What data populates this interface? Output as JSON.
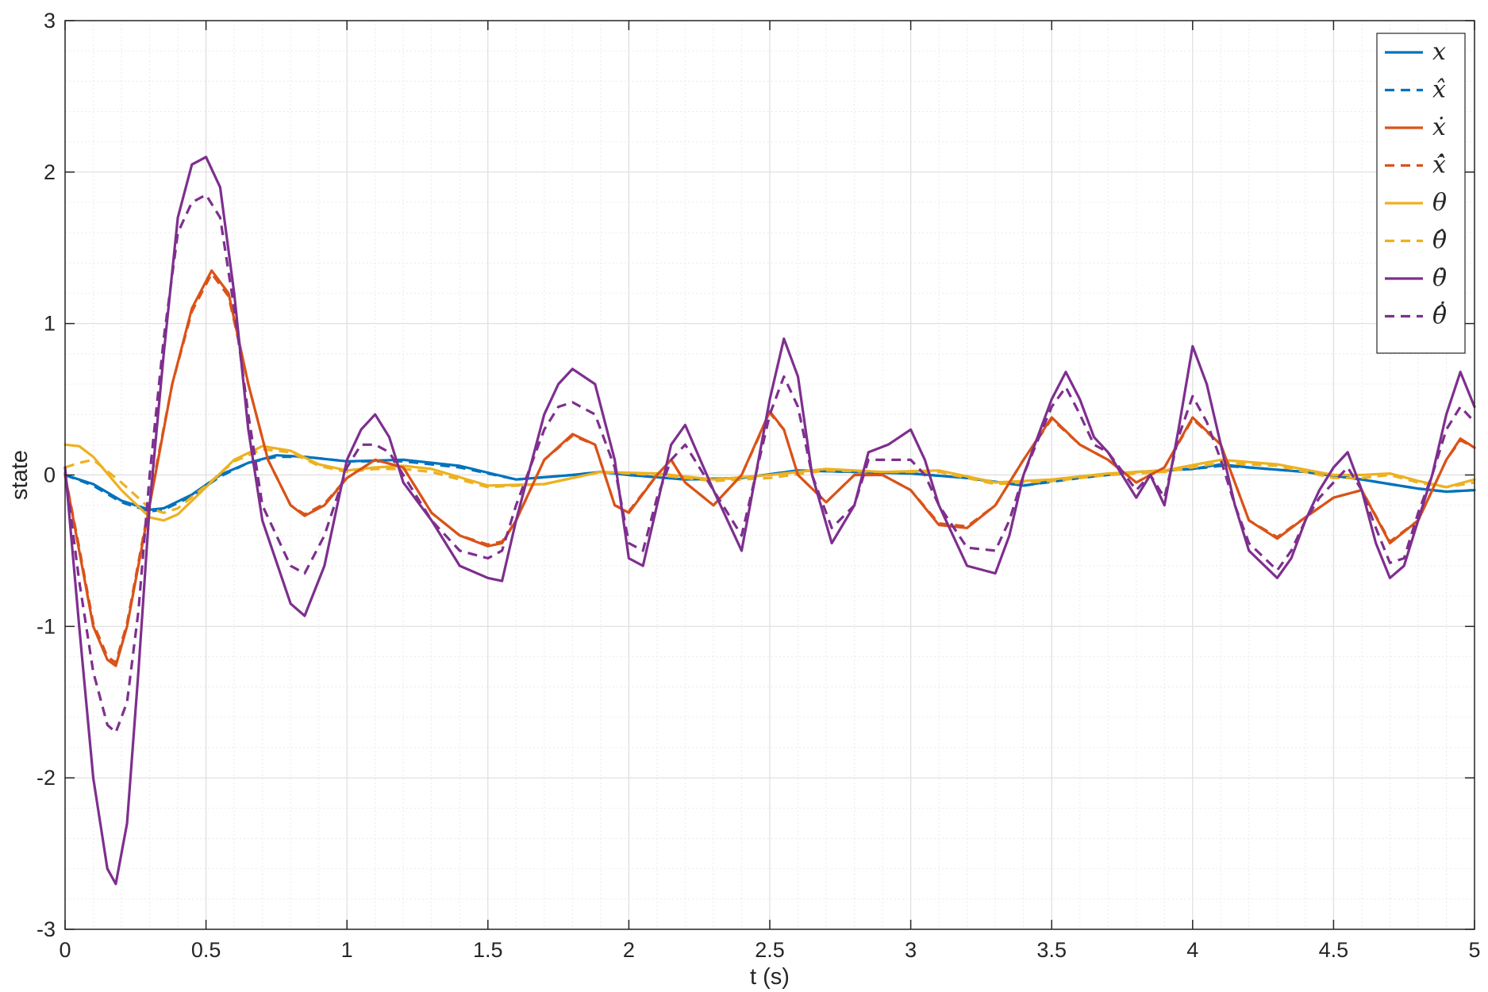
{
  "chart_data": {
    "type": "line",
    "title": "",
    "xlabel": "t (s)",
    "ylabel": "state",
    "xlim": [
      0,
      5
    ],
    "ylim": [
      -3,
      3
    ],
    "xticks": [
      0,
      0.5,
      1,
      1.5,
      2,
      2.5,
      3,
      3.5,
      4,
      4.5,
      5
    ],
    "xtick_labels": [
      "0",
      "0.5",
      "1",
      "1.5",
      "2",
      "2.5",
      "3",
      "3.5",
      "4",
      "4.5",
      "5"
    ],
    "yticks": [
      -3,
      -2,
      -1,
      0,
      1,
      2,
      3
    ],
    "ytick_labels": [
      "-3",
      "-2",
      "-1",
      "0",
      "1",
      "2",
      "3"
    ],
    "grid": true,
    "minor_grid": true,
    "legend_position": "top-right",
    "series": [
      {
        "name": "x",
        "color": "#0072BD",
        "dashed": false,
        "x": [
          0,
          0.1,
          0.2,
          0.3,
          0.35,
          0.45,
          0.55,
          0.65,
          0.75,
          0.85,
          1.0,
          1.2,
          1.4,
          1.6,
          1.8,
          1.9,
          2.0,
          2.2,
          2.4,
          2.6,
          2.8,
          3.0,
          3.2,
          3.4,
          3.6,
          3.8,
          4.0,
          4.1,
          4.2,
          4.4,
          4.6,
          4.7,
          4.8,
          4.9,
          5.0
        ],
        "y": [
          0,
          -0.06,
          -0.17,
          -0.23,
          -0.22,
          -0.13,
          0,
          0.08,
          0.13,
          0.12,
          0.09,
          0.1,
          0.06,
          -0.03,
          0,
          0.02,
          0,
          -0.03,
          -0.02,
          0.03,
          0.02,
          0.01,
          -0.02,
          -0.07,
          -0.01,
          0.02,
          0.04,
          0.07,
          0.05,
          0.02,
          -0.03,
          -0.06,
          -0.09,
          -0.11,
          -0.1
        ]
      },
      {
        "name": "x̂",
        "color": "#0072BD",
        "dashed": true,
        "x": [
          0,
          0.1,
          0.2,
          0.3,
          0.35,
          0.45,
          0.55,
          0.65,
          0.75,
          0.85,
          1.0,
          1.2,
          1.4,
          1.6,
          1.8,
          1.9,
          2.0,
          2.2,
          2.4,
          2.6,
          2.8,
          3.0,
          3.2,
          3.4,
          3.6,
          3.8,
          4.0,
          4.1,
          4.2,
          4.4,
          4.6,
          4.7,
          4.8,
          4.9,
          5.0
        ],
        "y": [
          0,
          -0.07,
          -0.18,
          -0.24,
          -0.23,
          -0.14,
          -0.01,
          0.08,
          0.12,
          0.12,
          0.09,
          0.09,
          0.05,
          -0.03,
          0,
          0.02,
          0,
          -0.03,
          -0.02,
          0.03,
          0.02,
          0.01,
          -0.02,
          -0.07,
          -0.02,
          0.02,
          0.04,
          0.06,
          0.05,
          0.02,
          -0.03,
          -0.06,
          -0.09,
          -0.11,
          -0.1
        ]
      },
      {
        "name": "ẋ",
        "color": "#D95319",
        "dashed": false,
        "x": [
          0,
          0.05,
          0.1,
          0.15,
          0.18,
          0.22,
          0.27,
          0.32,
          0.38,
          0.45,
          0.52,
          0.58,
          0.65,
          0.72,
          0.8,
          0.85,
          0.92,
          1.0,
          1.1,
          1.2,
          1.3,
          1.4,
          1.5,
          1.55,
          1.6,
          1.7,
          1.8,
          1.88,
          1.95,
          2.0,
          2.1,
          2.15,
          2.2,
          2.3,
          2.4,
          2.5,
          2.55,
          2.6,
          2.7,
          2.8,
          2.9,
          3.0,
          3.1,
          3.2,
          3.3,
          3.4,
          3.5,
          3.6,
          3.7,
          3.8,
          3.9,
          4.0,
          4.1,
          4.2,
          4.3,
          4.4,
          4.5,
          4.6,
          4.7,
          4.8,
          4.9,
          4.95,
          5.0
        ],
        "y": [
          0,
          -0.5,
          -1.0,
          -1.22,
          -1.26,
          -1.0,
          -0.5,
          0.0,
          0.6,
          1.1,
          1.35,
          1.2,
          0.6,
          0.1,
          -0.2,
          -0.27,
          -0.2,
          -0.02,
          0.1,
          0.05,
          -0.25,
          -0.4,
          -0.47,
          -0.45,
          -0.3,
          0.1,
          0.27,
          0.2,
          -0.2,
          -0.25,
          0.0,
          0.1,
          -0.05,
          -0.2,
          0.0,
          0.42,
          0.3,
          0.0,
          -0.18,
          0.0,
          0.0,
          -0.1,
          -0.33,
          -0.35,
          -0.2,
          0.1,
          0.38,
          0.2,
          0.1,
          -0.05,
          0.05,
          0.38,
          0.2,
          -0.3,
          -0.42,
          -0.28,
          -0.15,
          -0.1,
          -0.45,
          -0.3,
          0.1,
          0.24,
          0.18
        ]
      },
      {
        "name": "x̂̇",
        "color": "#D95319",
        "dashed": true,
        "x": [
          0,
          0.05,
          0.1,
          0.15,
          0.18,
          0.22,
          0.27,
          0.32,
          0.38,
          0.45,
          0.52,
          0.58,
          0.65,
          0.72,
          0.8,
          0.85,
          0.92,
          1.0,
          1.1,
          1.2,
          1.3,
          1.4,
          1.5,
          1.55,
          1.6,
          1.7,
          1.8,
          1.88,
          1.95,
          2.0,
          2.1,
          2.15,
          2.2,
          2.3,
          2.4,
          2.5,
          2.55,
          2.6,
          2.7,
          2.8,
          2.9,
          3.0,
          3.1,
          3.2,
          3.3,
          3.4,
          3.5,
          3.6,
          3.7,
          3.8,
          3.9,
          4.0,
          4.1,
          4.2,
          4.3,
          4.4,
          4.5,
          4.6,
          4.7,
          4.8,
          4.9,
          4.95,
          5.0
        ],
        "y": [
          0,
          -0.48,
          -0.98,
          -1.2,
          -1.24,
          -0.98,
          -0.48,
          0.02,
          0.6,
          1.08,
          1.33,
          1.18,
          0.6,
          0.1,
          -0.2,
          -0.26,
          -0.19,
          -0.02,
          0.1,
          0.05,
          -0.25,
          -0.4,
          -0.46,
          -0.44,
          -0.3,
          0.1,
          0.26,
          0.2,
          -0.2,
          -0.24,
          0.0,
          0.1,
          -0.05,
          -0.2,
          0.0,
          0.41,
          0.3,
          0.0,
          -0.18,
          0.0,
          0.0,
          -0.1,
          -0.32,
          -0.34,
          -0.2,
          0.1,
          0.37,
          0.2,
          0.1,
          -0.05,
          0.05,
          0.37,
          0.2,
          -0.3,
          -0.41,
          -0.28,
          -0.15,
          -0.1,
          -0.44,
          -0.3,
          0.1,
          0.23,
          0.18
        ]
      },
      {
        "name": "θ",
        "color": "#EDB120",
        "dashed": false,
        "x": [
          0,
          0.05,
          0.1,
          0.2,
          0.3,
          0.35,
          0.4,
          0.5,
          0.6,
          0.7,
          0.8,
          0.9,
          1.0,
          1.1,
          1.2,
          1.3,
          1.5,
          1.7,
          1.9,
          2.1,
          2.3,
          2.5,
          2.7,
          2.9,
          3.1,
          3.3,
          3.5,
          3.7,
          3.9,
          4.1,
          4.3,
          4.5,
          4.6,
          4.7,
          4.8,
          4.9,
          5.0
        ],
        "y": [
          0.2,
          0.19,
          0.12,
          -0.1,
          -0.28,
          -0.3,
          -0.26,
          -0.08,
          0.1,
          0.19,
          0.16,
          0.07,
          0.03,
          0.05,
          0.06,
          0.04,
          -0.07,
          -0.06,
          0.02,
          0.01,
          -0.03,
          0.0,
          0.04,
          0.02,
          0.03,
          -0.05,
          -0.03,
          0.01,
          0.03,
          0.1,
          0.07,
          0.0,
          0.0,
          0.01,
          -0.04,
          -0.08,
          -0.03
        ]
      },
      {
        "name": "θ̂",
        "color": "#EDB120",
        "dashed": true,
        "x": [
          0,
          0.05,
          0.1,
          0.2,
          0.3,
          0.35,
          0.4,
          0.5,
          0.6,
          0.7,
          0.8,
          0.9,
          1.0,
          1.1,
          1.2,
          1.3,
          1.5,
          1.7,
          1.9,
          2.1,
          2.3,
          2.5,
          2.7,
          2.9,
          3.1,
          3.3,
          3.5,
          3.7,
          3.9,
          4.1,
          4.3,
          4.5,
          4.6,
          4.7,
          4.8,
          4.9,
          5.0
        ],
        "y": [
          0.05,
          0.08,
          0.1,
          -0.05,
          -0.22,
          -0.25,
          -0.22,
          -0.07,
          0.09,
          0.17,
          0.15,
          0.06,
          0.02,
          0.04,
          0.04,
          0.02,
          -0.08,
          -0.06,
          0.02,
          0.0,
          -0.04,
          -0.02,
          0.03,
          0.02,
          0.02,
          -0.06,
          -0.04,
          0.0,
          0.02,
          0.08,
          0.06,
          -0.02,
          -0.02,
          0.0,
          -0.05,
          -0.08,
          -0.05
        ]
      },
      {
        "name": "θ̇",
        "color": "#7E2F8E",
        "dashed": false,
        "x": [
          0,
          0.05,
          0.1,
          0.15,
          0.18,
          0.22,
          0.26,
          0.3,
          0.35,
          0.4,
          0.45,
          0.5,
          0.55,
          0.6,
          0.65,
          0.7,
          0.8,
          0.85,
          0.92,
          1.0,
          1.05,
          1.1,
          1.15,
          1.2,
          1.3,
          1.4,
          1.5,
          1.55,
          1.6,
          1.7,
          1.75,
          1.8,
          1.88,
          1.95,
          2.0,
          2.05,
          2.1,
          2.15,
          2.2,
          2.3,
          2.4,
          2.5,
          2.55,
          2.6,
          2.65,
          2.72,
          2.8,
          2.85,
          2.92,
          3.0,
          3.05,
          3.1,
          3.2,
          3.3,
          3.35,
          3.4,
          3.5,
          3.55,
          3.6,
          3.65,
          3.7,
          3.8,
          3.85,
          3.9,
          3.95,
          4.0,
          4.05,
          4.1,
          4.15,
          4.2,
          4.3,
          4.35,
          4.4,
          4.45,
          4.5,
          4.55,
          4.6,
          4.65,
          4.7,
          4.75,
          4.8,
          4.85,
          4.9,
          4.95,
          5.0
        ],
        "y": [
          0.05,
          -1.0,
          -2.0,
          -2.6,
          -2.7,
          -2.3,
          -1.3,
          -0.2,
          0.8,
          1.7,
          2.05,
          2.1,
          1.9,
          1.2,
          0.3,
          -0.3,
          -0.85,
          -0.93,
          -0.6,
          0.1,
          0.3,
          0.4,
          0.25,
          -0.05,
          -0.3,
          -0.6,
          -0.68,
          -0.7,
          -0.3,
          0.4,
          0.6,
          0.7,
          0.6,
          0.1,
          -0.55,
          -0.6,
          -0.2,
          0.2,
          0.33,
          -0.1,
          -0.5,
          0.5,
          0.9,
          0.65,
          0.0,
          -0.45,
          -0.2,
          0.15,
          0.2,
          0.3,
          0.1,
          -0.2,
          -0.6,
          -0.65,
          -0.4,
          0.0,
          0.5,
          0.68,
          0.5,
          0.25,
          0.15,
          -0.15,
          0.0,
          -0.2,
          0.3,
          0.85,
          0.6,
          0.2,
          -0.2,
          -0.5,
          -0.68,
          -0.55,
          -0.3,
          -0.1,
          0.05,
          0.15,
          -0.1,
          -0.45,
          -0.68,
          -0.6,
          -0.3,
          0.0,
          0.4,
          0.68,
          0.45
        ]
      },
      {
        "name": "θ̂̇",
        "color": "#7E2F8E",
        "dashed": true,
        "x": [
          0,
          0.05,
          0.1,
          0.15,
          0.18,
          0.22,
          0.26,
          0.3,
          0.35,
          0.4,
          0.45,
          0.5,
          0.55,
          0.6,
          0.65,
          0.7,
          0.8,
          0.85,
          0.92,
          1.0,
          1.05,
          1.1,
          1.15,
          1.2,
          1.3,
          1.4,
          1.5,
          1.55,
          1.6,
          1.7,
          1.75,
          1.8,
          1.88,
          1.95,
          2.0,
          2.05,
          2.1,
          2.15,
          2.2,
          2.3,
          2.4,
          2.5,
          2.55,
          2.6,
          2.65,
          2.72,
          2.8,
          2.85,
          2.92,
          3.0,
          3.05,
          3.1,
          3.2,
          3.3,
          3.35,
          3.4,
          3.5,
          3.55,
          3.6,
          3.65,
          3.7,
          3.8,
          3.85,
          3.9,
          3.95,
          4.0,
          4.05,
          4.1,
          4.15,
          4.2,
          4.3,
          4.35,
          4.4,
          4.45,
          4.5,
          4.55,
          4.6,
          4.65,
          4.7,
          4.75,
          4.8,
          4.85,
          4.9,
          4.95,
          5.0
        ],
        "y": [
          0.02,
          -0.7,
          -1.3,
          -1.65,
          -1.7,
          -1.5,
          -0.9,
          0.0,
          0.9,
          1.6,
          1.8,
          1.85,
          1.7,
          1.1,
          0.4,
          -0.2,
          -0.6,
          -0.65,
          -0.4,
          0.05,
          0.2,
          0.2,
          0.15,
          0.0,
          -0.3,
          -0.5,
          -0.55,
          -0.5,
          -0.2,
          0.3,
          0.45,
          0.48,
          0.4,
          0.05,
          -0.45,
          -0.5,
          -0.15,
          0.1,
          0.2,
          -0.1,
          -0.4,
          0.4,
          0.65,
          0.45,
          0.0,
          -0.35,
          -0.2,
          0.1,
          0.1,
          0.1,
          0.0,
          -0.2,
          -0.48,
          -0.5,
          -0.3,
          0.0,
          0.45,
          0.58,
          0.4,
          0.2,
          0.15,
          -0.1,
          0.0,
          -0.15,
          0.25,
          0.52,
          0.35,
          0.1,
          -0.2,
          -0.45,
          -0.63,
          -0.5,
          -0.3,
          -0.15,
          -0.05,
          0.05,
          -0.1,
          -0.35,
          -0.58,
          -0.55,
          -0.25,
          0.0,
          0.3,
          0.45,
          0.35
        ]
      }
    ]
  }
}
